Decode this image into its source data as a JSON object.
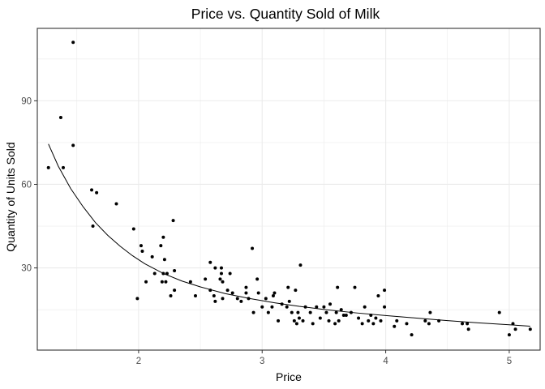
{
  "chart_data": {
    "type": "scatter",
    "title": "Price vs. Quantity Sold of Milk",
    "xlabel": "Price",
    "ylabel": "Quantity of Units Sold",
    "xlim": [
      1.18,
      5.25
    ],
    "ylim": [
      0.5,
      116
    ],
    "x_ticks": [
      2,
      3,
      4,
      5
    ],
    "y_ticks": [
      30,
      60,
      90
    ],
    "x_minor_ticks": [
      1.5,
      2.5,
      3.5,
      4.5
    ],
    "y_minor_ticks": [
      15,
      45,
      75,
      105
    ],
    "grid": true,
    "colors": {
      "points": "#000000",
      "trend": "#000000",
      "grid": "#ebebeb",
      "panel_border": "#333333"
    },
    "series": [
      {
        "points": [
          [
            1.27,
            66
          ],
          [
            1.37,
            84
          ],
          [
            1.39,
            66
          ],
          [
            1.47,
            111
          ],
          [
            1.47,
            74
          ],
          [
            1.62,
            58
          ],
          [
            1.63,
            45
          ],
          [
            1.66,
            57
          ],
          [
            1.82,
            53
          ],
          [
            1.96,
            44
          ],
          [
            1.99,
            19
          ],
          [
            2.02,
            38
          ],
          [
            2.03,
            36
          ],
          [
            2.06,
            25
          ],
          [
            2.11,
            34
          ],
          [
            2.13,
            28
          ],
          [
            2.18,
            38
          ],
          [
            2.19,
            25
          ],
          [
            2.2,
            28
          ],
          [
            2.2,
            41
          ],
          [
            2.21,
            33
          ],
          [
            2.22,
            25
          ],
          [
            2.23,
            28
          ],
          [
            2.26,
            20
          ],
          [
            2.28,
            47
          ],
          [
            2.29,
            22
          ],
          [
            2.29,
            29
          ],
          [
            2.42,
            25
          ],
          [
            2.46,
            20
          ],
          [
            2.54,
            26
          ],
          [
            2.58,
            32
          ],
          [
            2.58,
            22
          ],
          [
            2.61,
            20
          ],
          [
            2.62,
            18
          ],
          [
            2.62,
            30
          ],
          [
            2.66,
            26
          ],
          [
            2.67,
            28
          ],
          [
            2.67,
            30
          ],
          [
            2.68,
            19
          ],
          [
            2.68,
            25
          ],
          [
            2.72,
            22
          ],
          [
            2.74,
            28
          ],
          [
            2.76,
            21
          ],
          [
            2.8,
            19
          ],
          [
            2.83,
            18
          ],
          [
            2.87,
            21
          ],
          [
            2.87,
            23
          ],
          [
            2.89,
            19
          ],
          [
            2.92,
            37
          ],
          [
            2.93,
            14
          ],
          [
            2.96,
            26
          ],
          [
            2.97,
            21
          ],
          [
            3.0,
            16
          ],
          [
            3.03,
            19
          ],
          [
            3.05,
            14
          ],
          [
            3.08,
            16
          ],
          [
            3.09,
            20
          ],
          [
            3.1,
            21
          ],
          [
            3.13,
            11
          ],
          [
            3.16,
            17
          ],
          [
            3.2,
            16
          ],
          [
            3.21,
            23
          ],
          [
            3.22,
            18
          ],
          [
            3.24,
            14
          ],
          [
            3.26,
            11
          ],
          [
            3.27,
            22
          ],
          [
            3.28,
            10
          ],
          [
            3.29,
            14
          ],
          [
            3.3,
            12
          ],
          [
            3.31,
            31
          ],
          [
            3.33,
            11
          ],
          [
            3.35,
            16
          ],
          [
            3.39,
            14
          ],
          [
            3.41,
            10
          ],
          [
            3.44,
            16
          ],
          [
            3.47,
            12
          ],
          [
            3.5,
            16
          ],
          [
            3.52,
            14
          ],
          [
            3.54,
            11
          ],
          [
            3.55,
            17
          ],
          [
            3.59,
            10
          ],
          [
            3.6,
            14
          ],
          [
            3.61,
            23
          ],
          [
            3.62,
            11
          ],
          [
            3.64,
            15
          ],
          [
            3.66,
            13
          ],
          [
            3.68,
            13
          ],
          [
            3.72,
            14
          ],
          [
            3.75,
            23
          ],
          [
            3.78,
            12
          ],
          [
            3.81,
            10
          ],
          [
            3.83,
            16
          ],
          [
            3.86,
            11
          ],
          [
            3.88,
            13
          ],
          [
            3.9,
            10
          ],
          [
            3.92,
            12
          ],
          [
            3.94,
            20
          ],
          [
            3.96,
            11
          ],
          [
            3.99,
            16
          ],
          [
            3.99,
            22
          ],
          [
            4.07,
            9
          ],
          [
            4.09,
            11
          ],
          [
            4.17,
            10
          ],
          [
            4.21,
            6
          ],
          [
            4.32,
            11
          ],
          [
            4.35,
            10
          ],
          [
            4.36,
            14
          ],
          [
            4.43,
            11
          ],
          [
            4.62,
            10
          ],
          [
            4.66,
            10
          ],
          [
            4.67,
            8
          ],
          [
            4.92,
            14
          ],
          [
            5.0,
            6
          ],
          [
            5.03,
            10
          ],
          [
            5.05,
            8
          ],
          [
            5.17,
            8
          ]
        ]
      }
    ],
    "trend_line": {
      "x": [
        1.27,
        1.35,
        1.45,
        1.55,
        1.65,
        1.75,
        1.85,
        1.95,
        2.05,
        2.2,
        2.35,
        2.5,
        2.7,
        2.9,
        3.1,
        3.3,
        3.5,
        3.75,
        4.0,
        4.25,
        4.5,
        4.75,
        5.0,
        5.17
      ],
      "y": [
        74.5,
        66.5,
        58.5,
        52.0,
        46.3,
        41.7,
        37.8,
        34.4,
        31.5,
        28.0,
        25.3,
        23.2,
        20.8,
        19.0,
        17.5,
        16.2,
        15.1,
        13.9,
        12.9,
        12.0,
        11.1,
        10.3,
        9.6,
        9.1
      ]
    }
  }
}
